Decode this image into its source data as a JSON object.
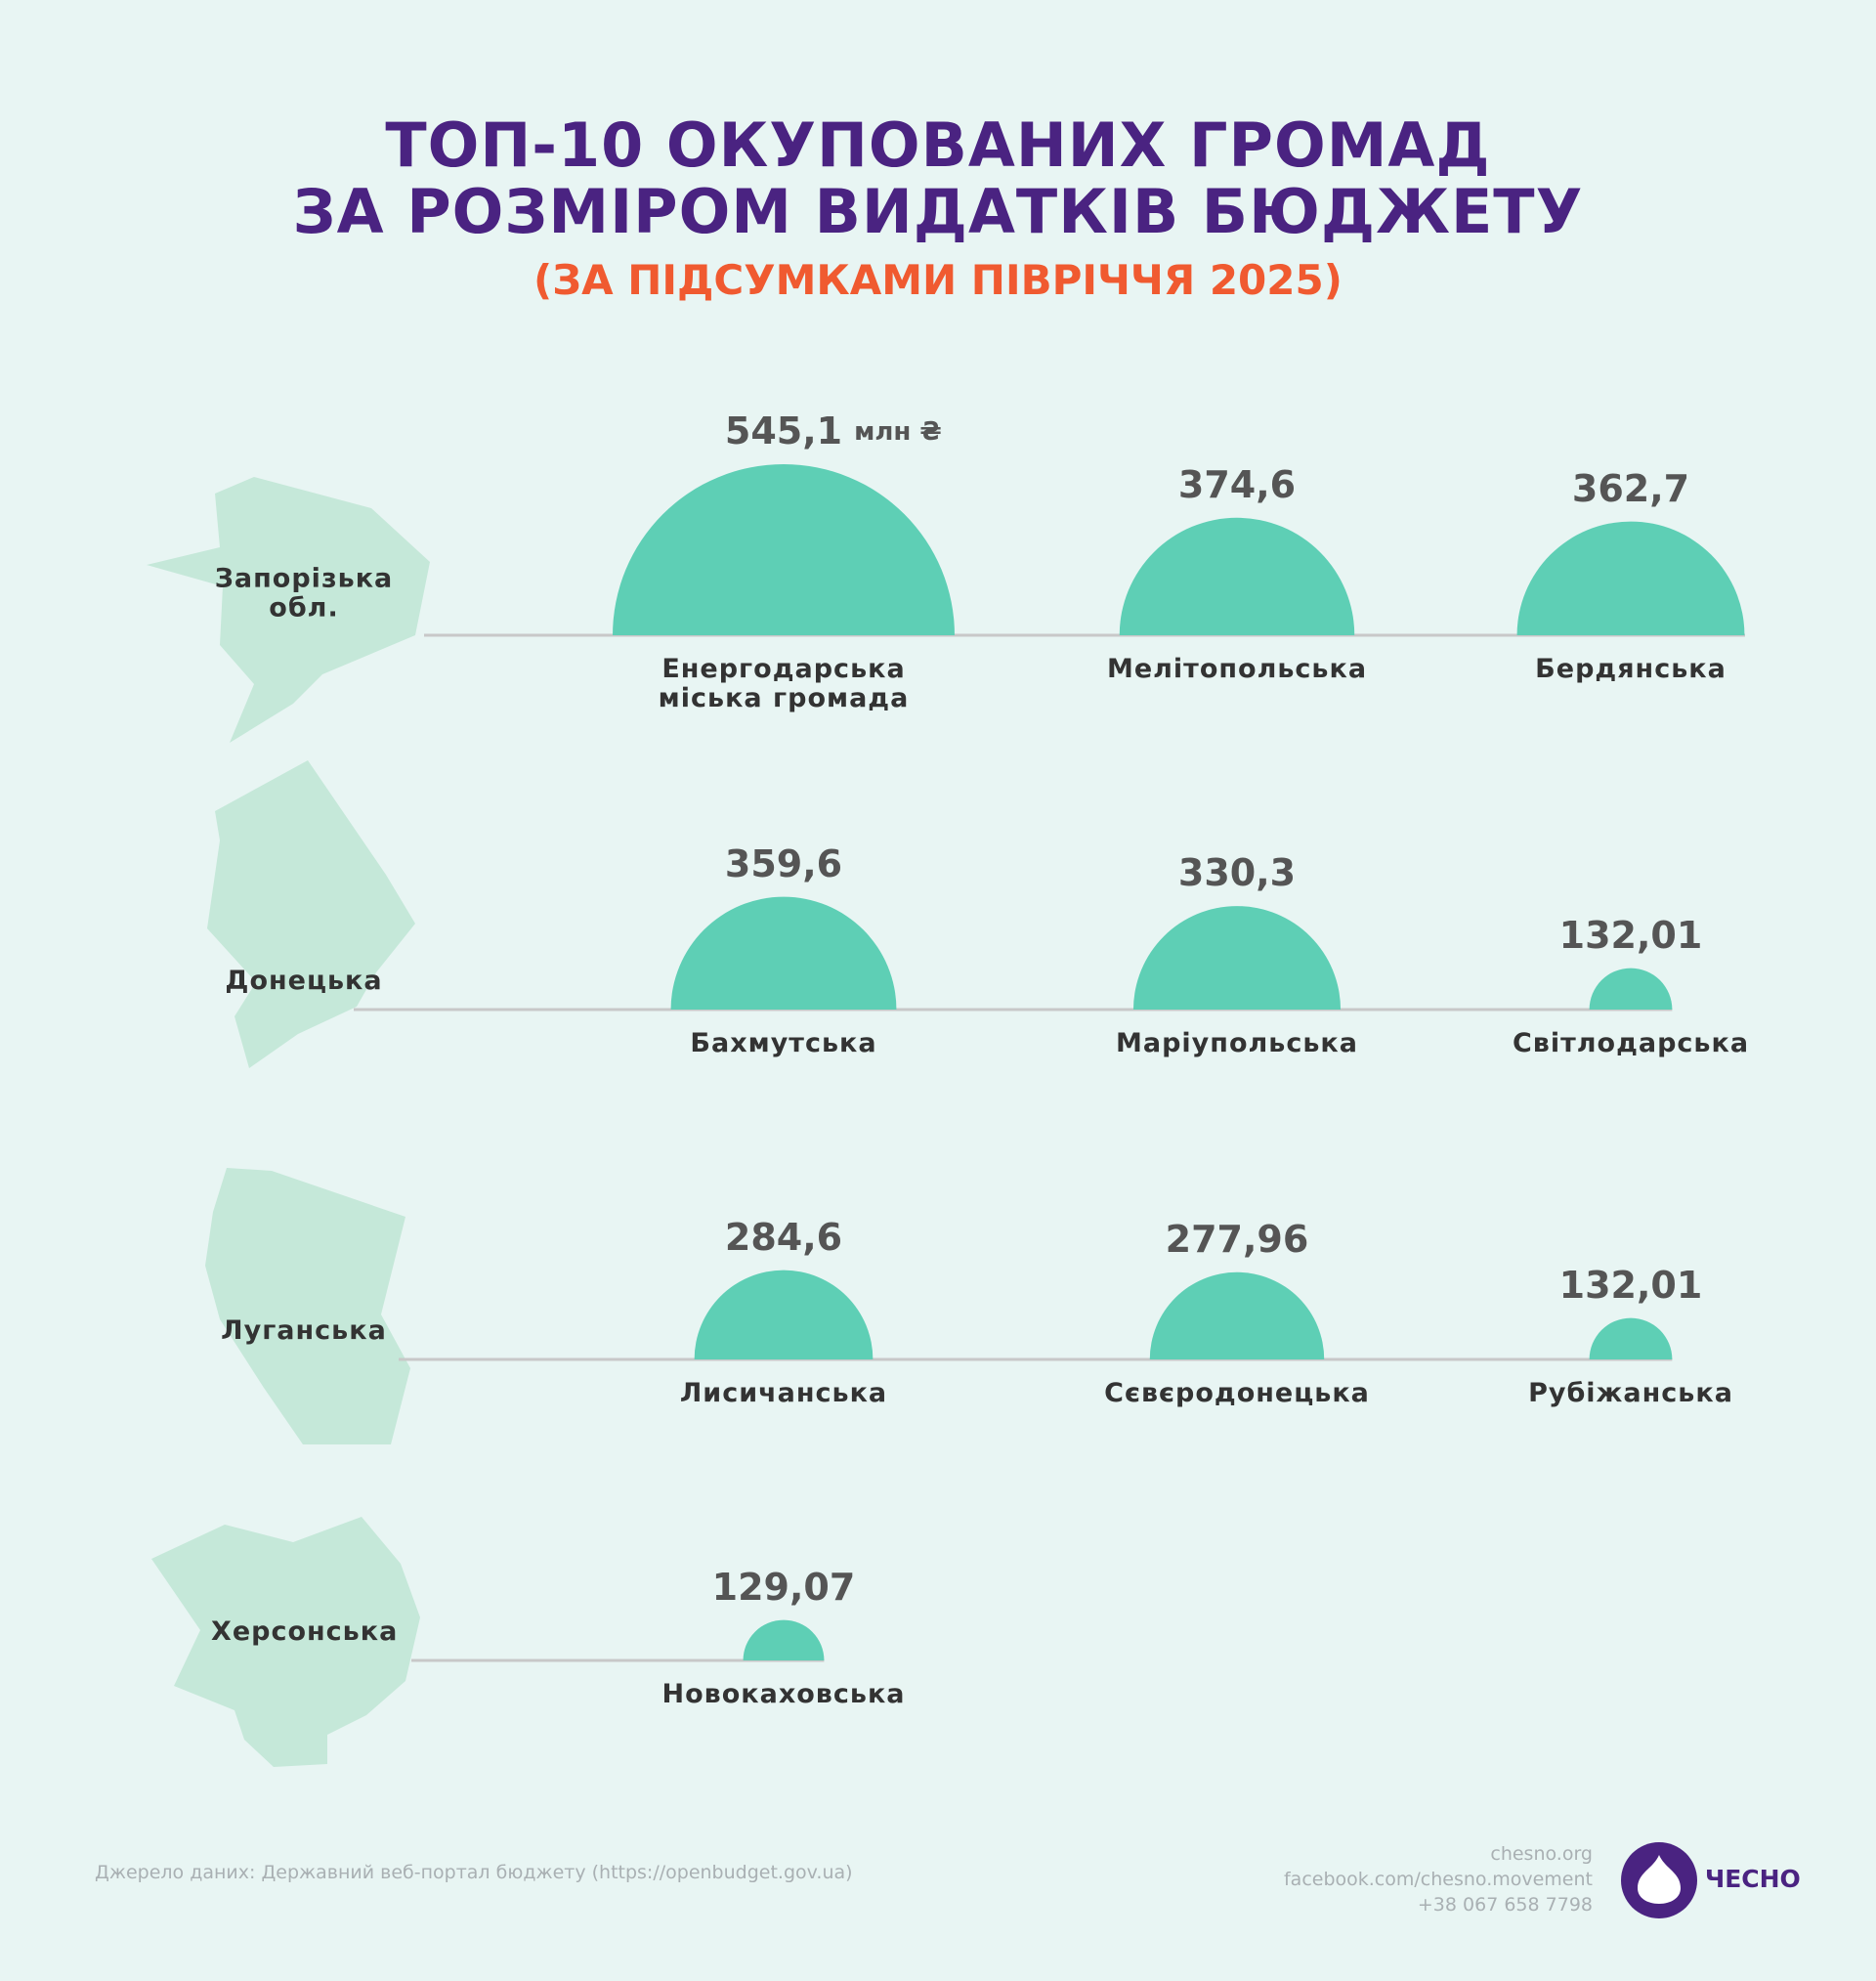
{
  "title_lines": [
    "ТОП-10 ОКУПОВАНИХ ГРОМАД",
    "ЗА РОЗМІРОМ ВИДАТКІВ БЮДЖЕТУ"
  ],
  "subtitle": "(ЗА ПІДСУМКАМИ ПІВРІЧЧЯ 2025)",
  "unit": "млн ₴",
  "color": "#5ecfb5",
  "regions": [
    {
      "name": "Запорізька обл.",
      "communities": [
        {
          "name": "Енергодарська міська громада",
          "value": 545.1,
          "value_label": "545,1"
        },
        {
          "name": "Мелітопольська",
          "value": 374.6,
          "value_label": "374,6"
        },
        {
          "name": "Бердянська",
          "value": 362.7,
          "value_label": "362,7"
        }
      ]
    },
    {
      "name": "Донецька",
      "communities": [
        {
          "name": "Бахмутська",
          "value": 359.6,
          "value_label": "359,6"
        },
        {
          "name": "Маріупольська",
          "value": 330.3,
          "value_label": "330,3"
        },
        {
          "name": "Світлодарська",
          "value": 132.01,
          "value_label": "132,01"
        }
      ]
    },
    {
      "name": "Луганська",
      "communities": [
        {
          "name": "Лисичанська",
          "value": 284.6,
          "value_label": "284,6"
        },
        {
          "name": "Сєвєродонецька",
          "value": 277.96,
          "value_label": "277,96"
        },
        {
          "name": "Рубіжанська",
          "value": 132.01,
          "value_label": "132,01"
        }
      ]
    },
    {
      "name": "Херсонська",
      "communities": [
        {
          "name": "Новокаховська",
          "value": 129.07,
          "value_label": "129,07"
        }
      ]
    }
  ],
  "footer": {
    "source": "Джерело даних: Державний веб-портал бюджету (https://openbudget.gov.ua)",
    "contacts": [
      "chesno.org",
      "facebook.com/chesno.movement",
      "+38 067 658 7798"
    ],
    "logo": "ЧЕСНО"
  }
}
